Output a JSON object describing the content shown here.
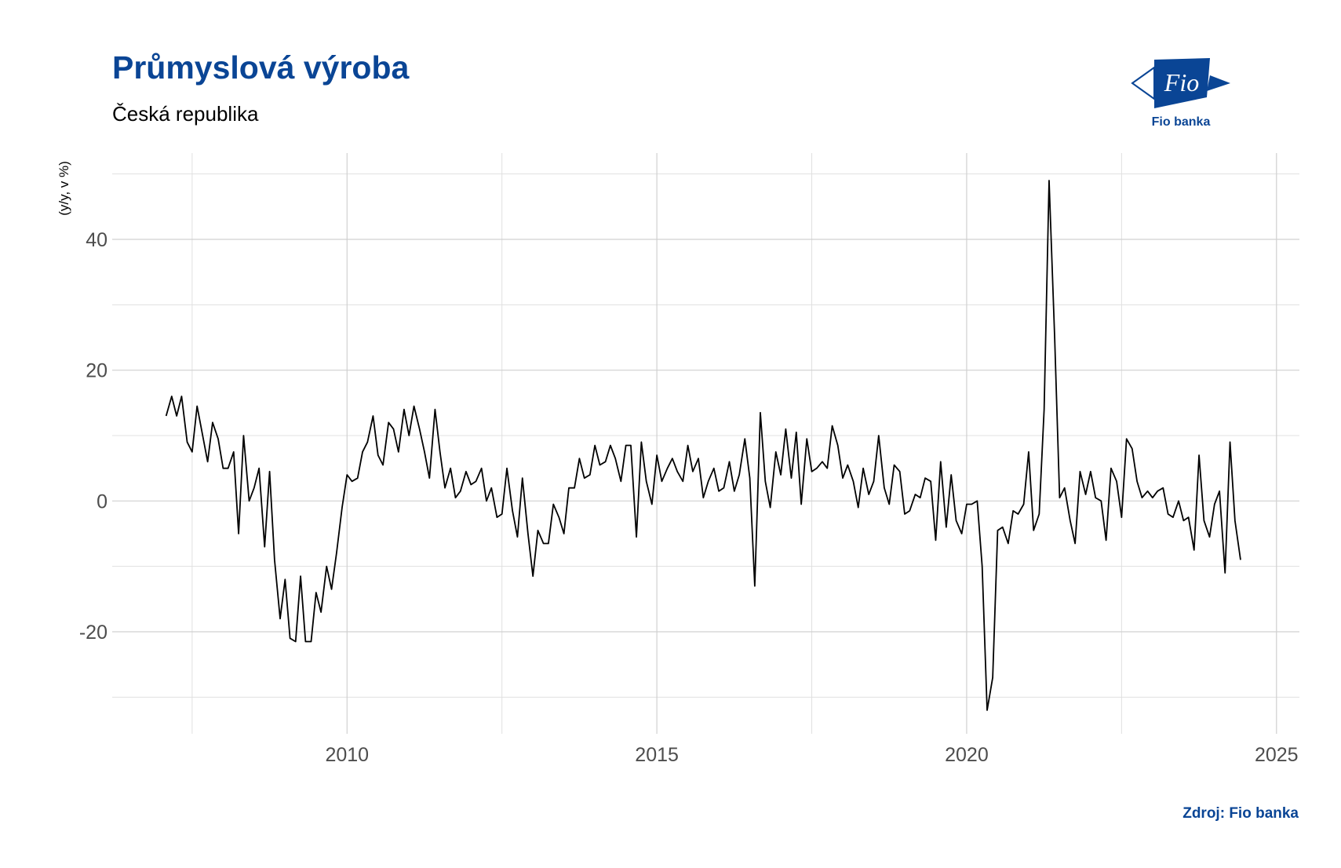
{
  "chart_data": {
    "type": "line",
    "title": "Průmyslová výroba",
    "subtitle": "Česká republika",
    "y_label": "(y/y, v %)",
    "source": "Zdroj: Fio banka",
    "logo": {
      "mark": "Fio",
      "name": "Fio banka"
    },
    "xlim": [
      2006.21,
      2025.37
    ],
    "ylim": [
      -35.6,
      53.2
    ],
    "xticks": [
      2010,
      2015,
      2020,
      2025
    ],
    "yticks": [
      -20,
      0,
      20,
      40
    ],
    "xminor": [
      2007.5,
      2012.5,
      2017.5,
      2022.5
    ],
    "yminor": [
      -30,
      -10,
      10,
      30,
      50
    ],
    "grid": true,
    "x": [
      2007.08,
      2007.17,
      2007.25,
      2007.33,
      2007.42,
      2007.5,
      2007.58,
      2007.67,
      2007.75,
      2007.83,
      2007.92,
      2008,
      2008.08,
      2008.17,
      2008.25,
      2008.33,
      2008.42,
      2008.5,
      2008.58,
      2008.67,
      2008.75,
      2008.83,
      2008.92,
      2009,
      2009.08,
      2009.17,
      2009.25,
      2009.33,
      2009.42,
      2009.5,
      2009.58,
      2009.67,
      2009.75,
      2009.83,
      2009.92,
      2010,
      2010.08,
      2010.17,
      2010.25,
      2010.33,
      2010.42,
      2010.5,
      2010.58,
      2010.67,
      2010.75,
      2010.83,
      2010.92,
      2011,
      2011.08,
      2011.17,
      2011.25,
      2011.33,
      2011.42,
      2011.5,
      2011.58,
      2011.67,
      2011.75,
      2011.83,
      2011.92,
      2012,
      2012.08,
      2012.17,
      2012.25,
      2012.33,
      2012.42,
      2012.5,
      2012.58,
      2012.67,
      2012.75,
      2012.83,
      2012.92,
      2013,
      2013.08,
      2013.17,
      2013.25,
      2013.33,
      2013.42,
      2013.5,
      2013.58,
      2013.67,
      2013.75,
      2013.83,
      2013.92,
      2014,
      2014.08,
      2014.17,
      2014.25,
      2014.33,
      2014.42,
      2014.5,
      2014.58,
      2014.67,
      2014.75,
      2014.83,
      2014.92,
      2015,
      2015.08,
      2015.17,
      2015.25,
      2015.33,
      2015.42,
      2015.5,
      2015.58,
      2015.67,
      2015.75,
      2015.83,
      2015.92,
      2016,
      2016.08,
      2016.17,
      2016.25,
      2016.33,
      2016.42,
      2016.5,
      2016.58,
      2016.67,
      2016.75,
      2016.83,
      2016.92,
      2017,
      2017.08,
      2017.17,
      2017.25,
      2017.33,
      2017.42,
      2017.5,
      2017.58,
      2017.67,
      2017.75,
      2017.83,
      2017.92,
      2018,
      2018.08,
      2018.17,
      2018.25,
      2018.33,
      2018.42,
      2018.5,
      2018.58,
      2018.67,
      2018.75,
      2018.83,
      2018.92,
      2019,
      2019.08,
      2019.17,
      2019.25,
      2019.33,
      2019.42,
      2019.5,
      2019.58,
      2019.67,
      2019.75,
      2019.83,
      2019.92,
      2020,
      2020.08,
      2020.17,
      2020.25,
      2020.33,
      2020.42,
      2020.5,
      2020.58,
      2020.67,
      2020.75,
      2020.83,
      2020.92,
      2021,
      2021.08,
      2021.17,
      2021.25,
      2021.33,
      2021.42,
      2021.5,
      2021.58,
      2021.67,
      2021.75,
      2021.83,
      2021.92,
      2022,
      2022.08,
      2022.17,
      2022.25,
      2022.33,
      2022.42,
      2022.5,
      2022.58,
      2022.67,
      2022.75,
      2022.83,
      2022.92,
      2023,
      2023.08,
      2023.17,
      2023.25,
      2023.33,
      2023.42,
      2023.5,
      2023.58,
      2023.67,
      2023.75,
      2023.83,
      2023.92,
      2024,
      2024.08,
      2024.17,
      2024.25,
      2024.33,
      2024.42
    ],
    "series": [
      {
        "color": "#000000",
        "values": [
          13,
          16,
          13,
          16,
          9,
          7.5,
          14.5,
          10,
          6,
          12,
          9.5,
          5,
          5,
          7.5,
          -5,
          10,
          0,
          2,
          5,
          -7,
          4.5,
          -9,
          -18,
          -12,
          -21,
          -21.5,
          -11.5,
          -21.5,
          -21.5,
          -14,
          -17,
          -10,
          -13.5,
          -8,
          -1,
          4,
          3,
          3.5,
          7.5,
          9,
          13,
          7,
          5.5,
          12,
          11,
          7.5,
          14,
          10,
          14.5,
          11,
          7.5,
          3.5,
          14,
          7.5,
          2,
          5,
          0.5,
          1.5,
          4.5,
          2.5,
          3,
          5,
          0,
          2,
          -2.5,
          -2,
          5,
          -1.5,
          -5.5,
          3.5,
          -5,
          -11.5,
          -4.5,
          -6.5,
          -6.5,
          -0.5,
          -2.5,
          -5,
          2,
          2,
          6.5,
          3.5,
          4,
          8.5,
          5.5,
          6,
          8.5,
          6.5,
          3,
          8.5,
          8.5,
          -5.5,
          9,
          3,
          -0.5,
          7,
          3,
          5,
          6.5,
          4.5,
          3,
          8.5,
          4.5,
          6.5,
          0.5,
          3,
          5,
          1.5,
          2,
          6,
          1.5,
          4,
          9.5,
          3.5,
          -13,
          13.5,
          3,
          -1,
          7.5,
          4,
          11,
          3.5,
          10.5,
          -0.5,
          9.5,
          4.5,
          5,
          6,
          5,
          11.5,
          8.5,
          3.5,
          5.5,
          3,
          -1,
          5,
          1,
          3,
          10,
          2,
          -0.5,
          5.5,
          4.5,
          -2,
          -1.5,
          1,
          0.5,
          3.5,
          3,
          -6,
          6,
          -4,
          4,
          -3,
          -5,
          -0.5,
          -0.5,
          0,
          -10,
          -32,
          -27,
          -4.5,
          -4,
          -6.5,
          -1.5,
          -2,
          -0.5,
          7.5,
          -4.5,
          -2,
          14,
          49,
          25,
          0.5,
          2,
          -3,
          -6.5,
          4.5,
          1,
          4.5,
          0.5,
          0,
          -6,
          5,
          3,
          -2.5,
          9.5,
          8,
          3,
          0.5,
          1.5,
          0.5,
          1.5,
          2,
          -2,
          -2.5,
          0,
          -3,
          -2.5,
          -7.5,
          7,
          -3,
          -5.5,
          -0.5,
          1.5,
          -11,
          9,
          -3,
          -9
        ]
      }
    ]
  }
}
